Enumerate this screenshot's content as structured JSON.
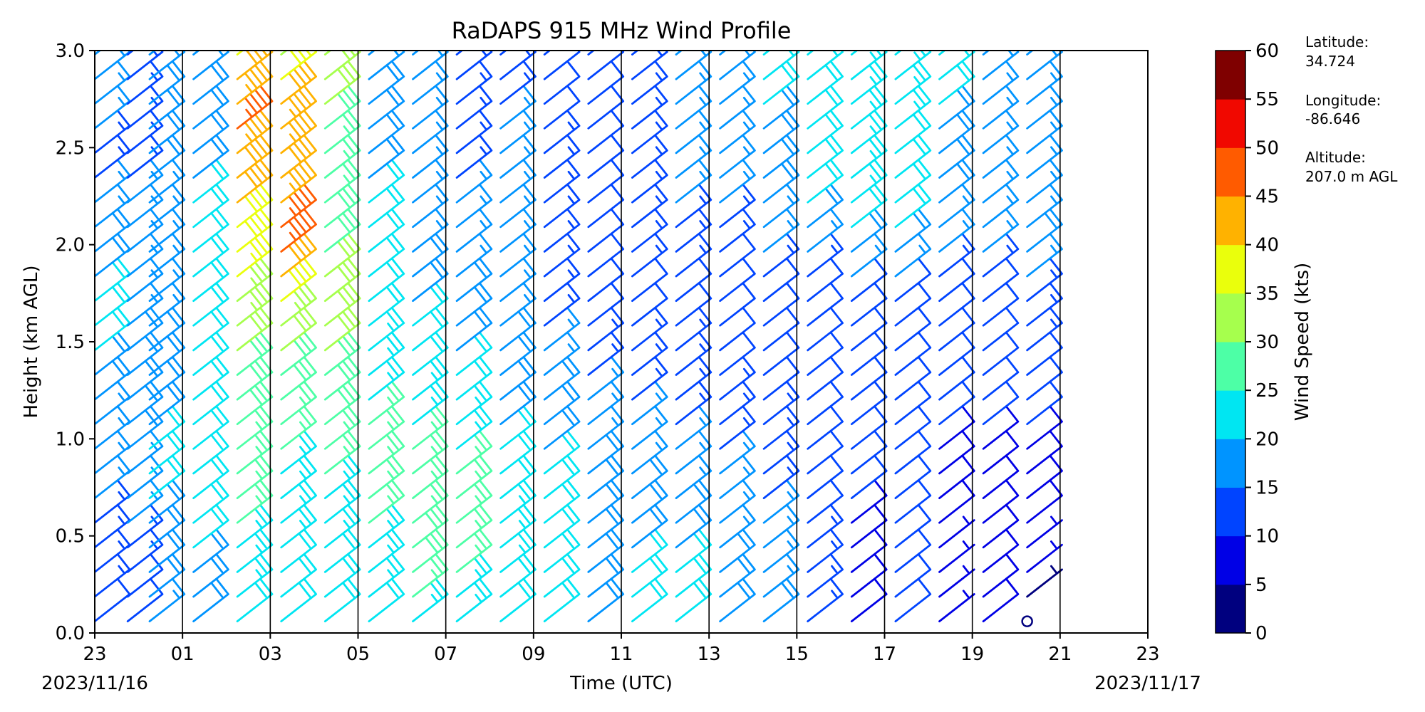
{
  "chart_data": {
    "type": "wind_barb_profile",
    "title": "RaDAPS 915 MHz Wind Profile",
    "xlabel": "Time (UTC)",
    "ylabel": "Height (km AGL)",
    "ylim": [
      0,
      3.0
    ],
    "y_ticks": [
      "0.0",
      "0.5",
      "1.0",
      "1.5",
      "2.0",
      "2.5",
      "3.0"
    ],
    "x_range_hours": [
      0,
      24
    ],
    "x_ticks": [
      "23",
      "01",
      "03",
      "05",
      "07",
      "09",
      "11",
      "13",
      "15",
      "17",
      "19",
      "21",
      "23"
    ],
    "start_date_label": "2023/11/16",
    "end_date_label": "2023/11/17",
    "vertical_gridlines": true,
    "colorbar": {
      "label": "Wind Speed (kts)",
      "ticks": [
        "0",
        "5",
        "10",
        "15",
        "20",
        "25",
        "30",
        "35",
        "40",
        "45",
        "50",
        "55",
        "60"
      ],
      "colors": [
        "#00007f",
        "#0000e6",
        "#0044ff",
        "#0094ff",
        "#00e6f2",
        "#4dffa6",
        "#a6ff4d",
        "#eaff0c",
        "#ffb200",
        "#ff5b00",
        "#f10800",
        "#7f0000"
      ]
    },
    "station": {
      "latitude_label": "Latitude:",
      "latitude": "34.724",
      "longitude_label": "Longitude:",
      "longitude": "-86.646",
      "altitude_label": "Altitude:",
      "altitude": "207.0 m AGL"
    },
    "profiles": [
      {
        "hour": 0.0,
        "speeds": [
          12,
          14,
          15,
          17,
          19,
          22,
          18,
          14,
          16,
          16
        ]
      },
      {
        "hour": 0.75,
        "speeds": [
          10,
          14,
          16,
          18,
          18,
          17,
          16,
          15,
          14,
          14
        ]
      },
      {
        "hour": 1.25,
        "speeds": [
          16,
          19,
          20,
          20,
          18,
          17,
          16,
          18,
          20,
          19
        ]
      },
      {
        "hour": 2.25,
        "speeds": [
          18,
          20,
          21,
          20,
          20,
          22,
          22,
          20,
          19,
          18
        ]
      },
      {
        "hour": 3.25,
        "speeds": [
          22,
          24,
          26,
          27,
          30,
          34,
          38,
          42,
          46,
          38
        ]
      },
      {
        "hour": 4.25,
        "speeds": [
          20,
          22,
          24,
          26,
          30,
          36,
          48,
          42,
          44,
          34
        ]
      },
      {
        "hour": 5.25,
        "speeds": [
          20,
          22,
          24,
          27,
          30,
          32,
          29,
          25,
          30,
          34
        ]
      },
      {
        "hour": 6.25,
        "speeds": [
          22,
          24,
          26,
          26,
          24,
          22,
          20,
          20,
          18,
          16
        ]
      },
      {
        "hour": 7.25,
        "speeds": [
          24,
          28,
          27,
          25,
          22,
          20,
          17,
          16,
          15,
          15
        ]
      },
      {
        "hour": 8.25,
        "speeds": [
          22,
          26,
          27,
          24,
          20,
          18,
          16,
          15,
          14,
          14
        ]
      },
      {
        "hour": 9.25,
        "speeds": [
          20,
          24,
          22,
          20,
          18,
          17,
          16,
          16,
          15,
          14
        ]
      },
      {
        "hour": 10.25,
        "speeds": [
          20,
          22,
          21,
          19,
          17,
          14,
          13,
          13,
          12,
          11
        ]
      },
      {
        "hour": 11.25,
        "speeds": [
          18,
          20,
          19,
          17,
          14,
          12,
          11,
          12,
          12,
          12
        ]
      },
      {
        "hour": 12.25,
        "speeds": [
          20,
          20,
          18,
          16,
          13,
          12,
          13,
          14,
          14,
          15
        ]
      },
      {
        "hour": 13.25,
        "speeds": [
          20,
          20,
          17,
          15,
          13,
          12,
          14,
          16,
          16,
          16
        ]
      },
      {
        "hour": 14.25,
        "speeds": [
          20,
          18,
          16,
          14,
          12,
          10,
          14,
          17,
          17,
          18
        ]
      },
      {
        "hour": 15.25,
        "speeds": [
          18,
          16,
          15,
          13,
          11,
          10,
          16,
          19,
          20,
          21
        ]
      },
      {
        "hour": 16.25,
        "speeds": [
          14,
          13,
          12,
          11,
          10,
          10,
          18,
          22,
          22,
          22
        ]
      },
      {
        "hour": 17.25,
        "speeds": [
          8,
          9,
          10,
          10,
          10,
          10,
          21,
          24,
          24,
          24
        ]
      },
      {
        "hour": 18.25,
        "speeds": [
          10,
          10,
          10,
          10,
          10,
          10,
          21,
          22,
          23,
          24
        ]
      },
      {
        "hour": 19.25,
        "speeds": [
          7,
          5,
          9,
          10,
          10,
          10,
          17,
          18,
          20,
          22
        ]
      },
      {
        "hour": 20.25,
        "speeds": [
          8,
          8,
          9,
          10,
          10,
          10,
          16,
          15,
          16,
          18
        ]
      },
      {
        "hour": 21.25,
        "speeds": [
          0,
          6,
          9,
          10,
          12,
          14,
          18,
          16,
          15,
          17
        ]
      }
    ]
  }
}
